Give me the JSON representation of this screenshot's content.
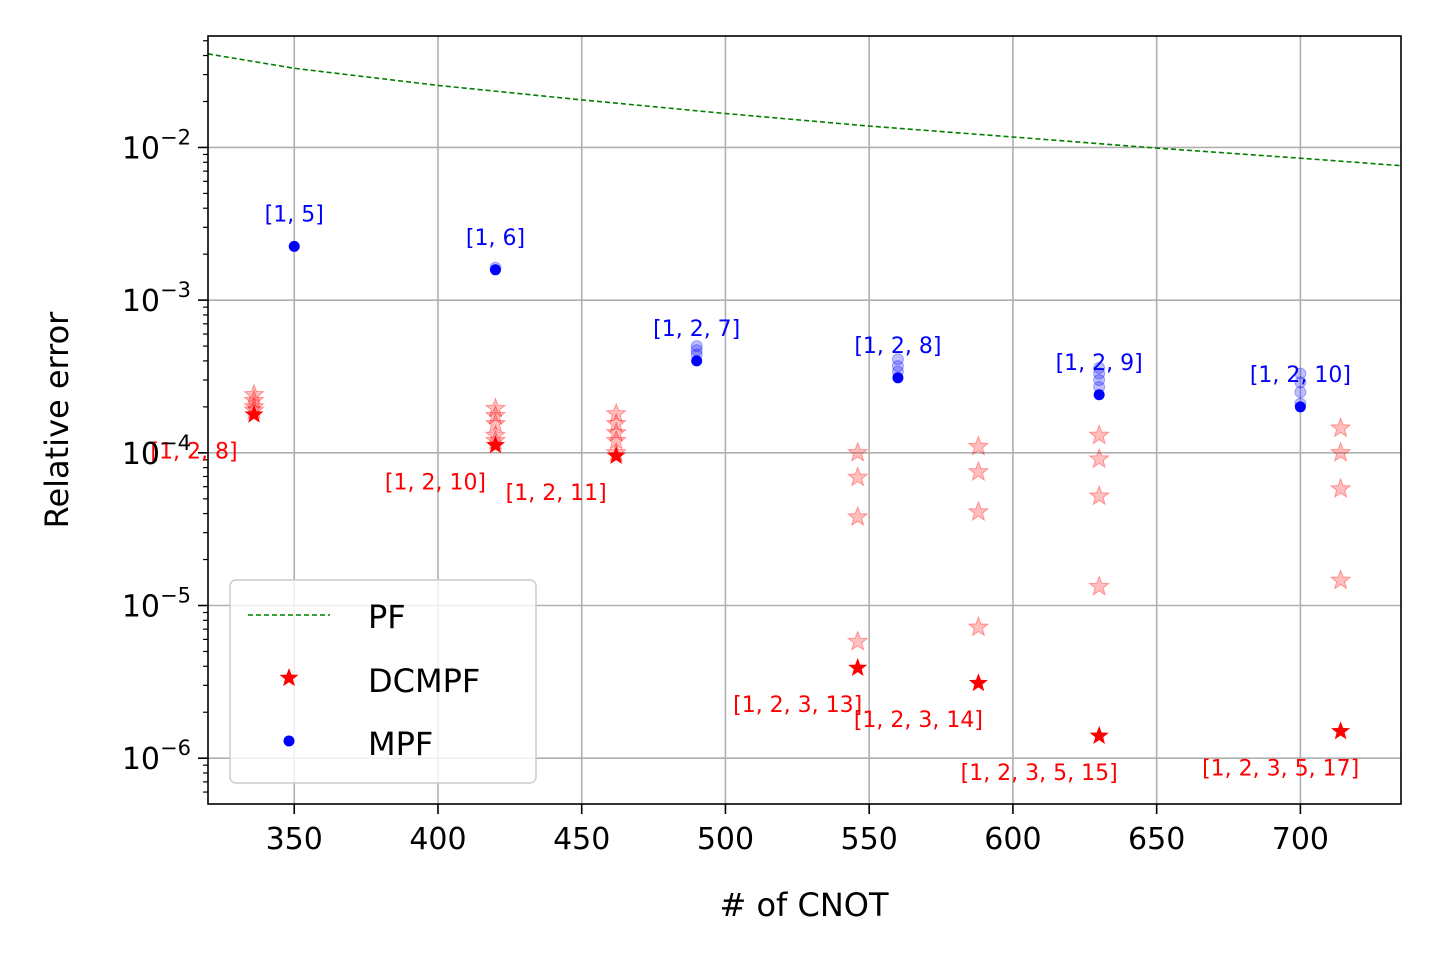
{
  "chart_data": {
    "type": "scatter",
    "xlabel": "# of CNOT",
    "ylabel": "Relative error",
    "xlim": [
      320,
      735
    ],
    "ylim_log10": [
      -6.3,
      -1.27
    ],
    "yscale": "log",
    "grid": true,
    "x_ticks": [
      350,
      400,
      450,
      500,
      550,
      600,
      650,
      700
    ],
    "x_tick_labels": [
      "350",
      "400",
      "450",
      "500",
      "550",
      "600",
      "650",
      "700"
    ],
    "y_ticks": [
      1e-06,
      1e-05,
      0.0001,
      0.001,
      0.01
    ],
    "y_tick_labels": [
      {
        "base": "10",
        "exp": "−6"
      },
      {
        "base": "10",
        "exp": "−5"
      },
      {
        "base": "10",
        "exp": "−4"
      },
      {
        "base": "10",
        "exp": "−3"
      },
      {
        "base": "10",
        "exp": "−2"
      }
    ],
    "legend": {
      "position": "lower-left",
      "entries": [
        {
          "label": "PF",
          "marker": "dashed-line",
          "color": "#008000"
        },
        {
          "label": "DCMPF",
          "marker": "star",
          "color": "#ff0000"
        },
        {
          "label": "MPF",
          "marker": "dot",
          "color": "#0000ff"
        }
      ]
    },
    "series": [
      {
        "name": "PF",
        "type": "line",
        "style": "dashed",
        "color": "#008000",
        "x": [
          320,
          350,
          400,
          450,
          500,
          550,
          600,
          650,
          700,
          735
        ],
        "y": [
          0.041,
          0.033,
          0.0255,
          0.0205,
          0.0167,
          0.0138,
          0.0117,
          0.0099,
          0.0085,
          0.0076
        ]
      },
      {
        "name": "MPF",
        "color": "#0000ff",
        "points": [
          {
            "x": 350,
            "y": 0.00225,
            "label": "[1, 5]",
            "faded": []
          },
          {
            "x": 420,
            "y": 0.00158,
            "label": "[1, 6]",
            "faded": [
              0.00163
            ]
          },
          {
            "x": 490,
            "y": 0.0004,
            "label": "[1, 2, 7]",
            "faded": [
              0.00044,
              0.00047,
              0.0005
            ]
          },
          {
            "x": 560,
            "y": 0.00031,
            "label": "[1, 2, 8]",
            "faded": [
              0.00034,
              0.00037,
              0.00041
            ]
          },
          {
            "x": 630,
            "y": 0.00024,
            "label": "[1, 2, 9]",
            "faded": [
              0.00027,
              0.0003,
              0.00033,
              0.00036
            ]
          },
          {
            "x": 700,
            "y": 0.0002,
            "label": "[1, 2, 10]",
            "faded": [
              0.00021,
              0.00025,
              0.00029,
              0.00033
            ]
          }
        ]
      },
      {
        "name": "DCMPF",
        "color": "#ff0000",
        "points": [
          {
            "x": 336,
            "y": 0.000178,
            "label": "[1, 2, 8]",
            "faded": [
              0.00019,
              0.0002,
              0.00022,
              0.00024
            ]
          },
          {
            "x": 420,
            "y": 0.000112,
            "label": "[1, 2, 10]",
            "faded": [
              0.00012,
              0.00013,
              0.000155,
              0.000175,
              0.000195
            ]
          },
          {
            "x": 462,
            "y": 9.55e-05,
            "label": "[1, 2, 11]",
            "faded": [
              0.0001,
              0.00012,
              0.000135,
              0.000155,
              0.00018
            ]
          },
          {
            "x": 546,
            "y": 3.9e-06,
            "label": "[1, 2, 3, 13]",
            "faded": [
              5.8e-06,
              3.8e-05,
              6.9e-05,
              0.0001
            ]
          },
          {
            "x": 588,
            "y": 3.1e-06,
            "label": "[1, 2, 3, 14]",
            "faded": [
              7.2e-06,
              4.1e-05,
              7.5e-05,
              0.00011
            ]
          },
          {
            "x": 630,
            "y": 1.4e-06,
            "label": "[1, 2, 3, 5, 15]",
            "faded": [
              1.33e-05,
              5.2e-05,
              9.1e-05,
              0.00013
            ]
          },
          {
            "x": 714,
            "y": 1.5e-06,
            "label": "[1, 2, 3, 5, 17]",
            "faded": [
              1.46e-05,
              5.8e-05,
              0.0001,
              0.000145
            ]
          }
        ]
      }
    ]
  }
}
